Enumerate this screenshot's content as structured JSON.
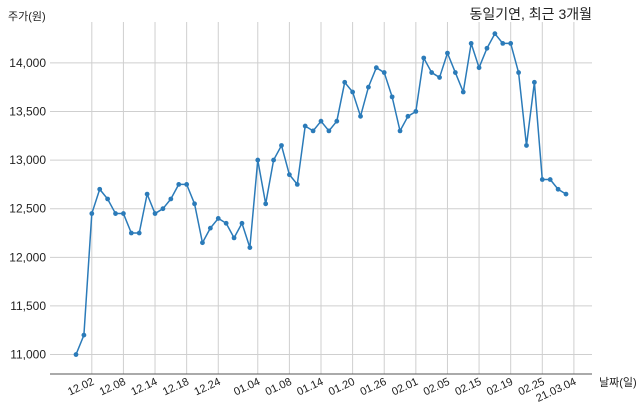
{
  "chart_data": {
    "type": "line",
    "title": "동일기연, 최근 3개월",
    "ylabel": "주가(원)",
    "xlabel": "날짜(일)",
    "ylim": [
      10800,
      14420
    ],
    "yticks": [
      11000,
      11500,
      12000,
      12500,
      13000,
      13500,
      14000
    ],
    "ytick_labels": [
      "11,000",
      "11,500",
      "12,000",
      "12,500",
      "13,000",
      "13,500",
      "14,000"
    ],
    "xtick_labels": [
      "12.02",
      "12.08",
      "12.14",
      "12.18",
      "12.24",
      "01.04",
      "01.08",
      "01.14",
      "01.20",
      "01.26",
      "02.01",
      "02.05",
      "02.15",
      "02.19",
      "02.25",
      "21.03.04"
    ],
    "xtick_index": [
      2,
      6,
      10,
      14,
      18,
      23,
      27,
      31,
      35,
      39,
      43,
      47,
      51,
      55,
      59,
      63
    ],
    "grid": true,
    "line_color": "#2b7bb9",
    "series": [
      {
        "values": [
          11000,
          11200,
          12450,
          12700,
          12600,
          12450,
          12450,
          12250,
          12250,
          12650,
          12450,
          12500,
          12600,
          12750,
          12750,
          12550,
          12150,
          12300,
          12400,
          12350,
          12200,
          12350,
          12100,
          13000,
          12550,
          13000,
          13150,
          12850,
          12750,
          13350,
          13300,
          13400,
          13300,
          13400,
          13800,
          13700,
          13450,
          13750,
          13950,
          13900,
          13650,
          13300,
          13450,
          13500,
          14050,
          13900,
          13850,
          14100,
          13900,
          13700,
          14200,
          13950,
          14150,
          14300,
          14200,
          14200,
          13900,
          13150,
          13800,
          12800,
          12800,
          12700,
          12650
        ]
      }
    ]
  }
}
